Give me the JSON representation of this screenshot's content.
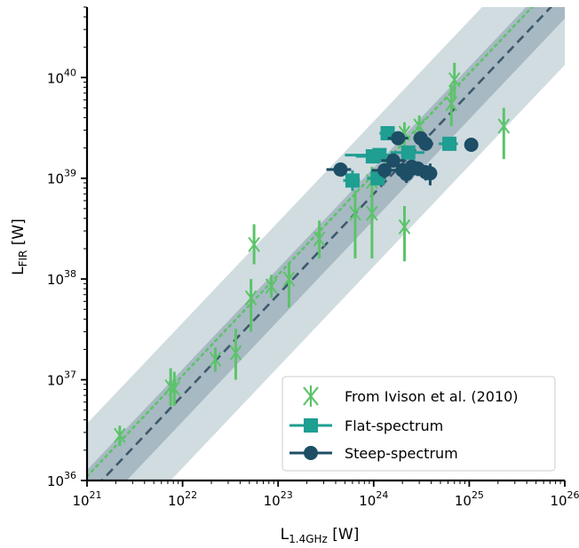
{
  "chart_data": {
    "type": "scatter",
    "x_scale": "log",
    "y_scale": "log",
    "xlim": [
      1e+21,
      1e+26
    ],
    "ylim": [
      1e+36,
      5e+40
    ],
    "x_ticks": [
      {
        "base": "10",
        "exp": "21"
      },
      {
        "base": "10",
        "exp": "22"
      },
      {
        "base": "10",
        "exp": "23"
      },
      {
        "base": "10",
        "exp": "24"
      },
      {
        "base": "10",
        "exp": "25"
      },
      {
        "base": "10",
        "exp": "26"
      }
    ],
    "y_ticks": [
      {
        "base": "10",
        "exp": "36"
      },
      {
        "base": "10",
        "exp": "37"
      },
      {
        "base": "10",
        "exp": "38"
      },
      {
        "base": "10",
        "exp": "39"
      },
      {
        "base": "10",
        "exp": "40"
      }
    ],
    "xlabel": {
      "main": "L",
      "sub": "1.4GHz",
      "unit": " [W]"
    },
    "ylabel": {
      "main": "L",
      "sub": "FIR",
      "unit": " [W]"
    },
    "legend_position": "lower-right",
    "colors": {
      "ivison": "#5cc36a",
      "flat": "#1f9e92",
      "steep": "#1d4e66",
      "band_outer": "#d0dce0",
      "band_inner": "#a7b9c2",
      "fit_line": "#3d5a6c"
    },
    "bands": {
      "inner_dex": 0.26,
      "outer_dex": 0.72
    },
    "lines": {
      "dashed_fit": [
        [
          1e+21,
          7e+35
        ],
        [
          1e+26,
          7e+40
        ]
      ],
      "dotted_fit": [
        [
          1e+21,
          1.1e+36
        ],
        [
          1e+26,
          1.1e+41
        ]
      ]
    },
    "series": [
      {
        "name": "From Ivison et al. (2010)",
        "marker": "x",
        "points": [
          {
            "x": 2.2e+21,
            "y": 2.8e+36,
            "yerr": [
              2.2e+36,
              3.5e+36
            ]
          },
          {
            "x": 7.5e+21,
            "y": 8.5e+36,
            "yerr": [
              5.5e+36,
              1.3e+37
            ]
          },
          {
            "x": 8.2e+21,
            "y": 8.2e+36,
            "yerr": [
              5.5e+36,
              1.2e+37
            ]
          },
          {
            "x": 2.2e+22,
            "y": 1.6e+37,
            "yerr": [
              1.2e+37,
              2.1e+37
            ]
          },
          {
            "x": 3.6e+22,
            "y": 1.85e+37,
            "yerr": [
              1e+37,
              3.2e+37
            ]
          },
          {
            "x": 5.2e+22,
            "y": 6.5e+37,
            "yerr": [
              3e+37,
              1e+38
            ]
          },
          {
            "x": 5.6e+22,
            "y": 2.2e+38,
            "yerr": [
              1.4e+38,
              3.5e+38
            ]
          },
          {
            "x": 8.5e+22,
            "y": 8.5e+37,
            "yerr": [
              6.5e+37,
              1.1e+38
            ]
          },
          {
            "x": 1.3e+23,
            "y": 1e+38,
            "yerr": [
              5.2e+37,
              1.45e+38
            ]
          },
          {
            "x": 2.7e+23,
            "y": 2.5e+38,
            "yerr": [
              1.6e+38,
              3.8e+38
            ]
          },
          {
            "x": 6.4e+23,
            "y": 4.5e+38,
            "yerr": [
              1.6e+38,
              7.5e+38
            ]
          },
          {
            "x": 9.6e+23,
            "y": 4.5e+38,
            "yerr": [
              1.6e+38,
              8e+38
            ]
          },
          {
            "x": 9.6e+23,
            "y": 9.3e+38,
            "yerr": [
              6.5e+38,
              1.3e+39
            ]
          },
          {
            "x": 2.1e+24,
            "y": 3.3e+38,
            "yerr": [
              1.5e+38,
              5.3e+38
            ]
          },
          {
            "x": 2.1e+24,
            "y": 2.8e+39,
            "yerr": [
              1.9e+39,
              3.6e+39
            ]
          },
          {
            "x": 3e+24,
            "y": 3.3e+39,
            "yerr": [
              2.3e+39,
              4.2e+39
            ]
          },
          {
            "x": 6.5e+24,
            "y": 5.5e+39,
            "yerr": [
              3.3e+39,
              8.5e+39
            ]
          },
          {
            "x": 7e+24,
            "y": 9.5e+39,
            "yerr": [
              6e+39,
              1.4e+40
            ]
          },
          {
            "x": 2.3e+25,
            "y": 3.3e+39,
            "yerr": [
              1.55e+39,
              5e+39
            ]
          }
        ]
      },
      {
        "name": "Flat-spectrum",
        "marker": "square",
        "points": [
          {
            "x": 6e+23,
            "y": 9.5e+38,
            "xerr": [
              4.8e+23,
              7.2e+23
            ],
            "yerr": [
              7.5e+38,
              1.2e+39
            ]
          },
          {
            "x": 9.8e+23,
            "y": 1.65e+39,
            "xerr": [
              6.5e+23,
              1.3e+24
            ],
            "yerr": [
              1.4e+39,
              1.9e+39
            ]
          },
          {
            "x": 1.15e+24,
            "y": 1.7e+39,
            "xerr": [
              5e+23,
              1.6e+24
            ],
            "yerr": [
              1.45e+39,
              1.95e+39
            ]
          },
          {
            "x": 1.1e+24,
            "y": 1e+39,
            "xerr": [
              8.5e+23,
              1.35e+24
            ],
            "yerr": [
              8.5e+38,
              1.15e+39
            ]
          },
          {
            "x": 1.4e+24,
            "y": 2.8e+39,
            "xerr": [
              1.15e+24,
              1.7e+24
            ],
            "yerr": [
              2.4e+39,
              3.2e+39
            ]
          },
          {
            "x": 2.3e+24,
            "y": 1.8e+39,
            "xerr": [
              1.5e+24,
              3.4e+24
            ],
            "yerr": [
              1.55e+39,
              2.05e+39
            ]
          },
          {
            "x": 6.2e+24,
            "y": 2.2e+39,
            "xerr": [
              4.8e+24,
              7.6e+24
            ],
            "yerr": [
              1.9e+39,
              2.5e+39
            ]
          }
        ]
      },
      {
        "name": "Steep-spectrum",
        "marker": "circle",
        "points": [
          {
            "x": 4.5e+23,
            "y": 1.22e+39,
            "xerr": [
              3.2e+23,
              5.8e+23
            ],
            "yerr": [
              1.08e+39,
              1.36e+39
            ]
          },
          {
            "x": 1.3e+24,
            "y": 1.2e+39,
            "xerr": [
              9.5e+23,
              1.7e+24
            ],
            "yerr": [
              1e+39,
              1.4e+39
            ]
          },
          {
            "x": 1.6e+24,
            "y": 1.5e+39,
            "xerr": [
              1.2e+24,
              2.1e+24
            ],
            "yerr": [
              1.3e+39,
              1.7e+39
            ]
          },
          {
            "x": 1.8e+24,
            "y": 2.5e+39,
            "xerr": [
              1.4e+24,
              2.3e+24
            ],
            "yerr": [
              2.2e+39,
              2.8e+39
            ]
          },
          {
            "x": 2e+24,
            "y": 1.2e+39,
            "xerr": [
              1.6e+24,
              2.5e+24
            ],
            "yerr": [
              1e+39,
              1.4e+39
            ]
          },
          {
            "x": 2.2e+24,
            "y": 1.1e+39,
            "xerr": [
              1.8e+24,
              2.7e+24
            ],
            "yerr": [
              9e+38,
              1.3e+39
            ]
          },
          {
            "x": 2.5e+24,
            "y": 1.3e+39,
            "xerr": [
              2e+24,
              3e+24
            ],
            "yerr": [
              1.1e+39,
              1.5e+39
            ]
          },
          {
            "x": 2.9e+24,
            "y": 1.25e+39,
            "xerr": [
              2.3e+24,
              3.6e+24
            ],
            "yerr": [
              1.05e+39,
              1.45e+39
            ]
          },
          {
            "x": 3.1e+24,
            "y": 2.5e+39,
            "xerr": [
              2.6e+24,
              3.6e+24
            ],
            "yerr": [
              2.2e+39,
              2.8e+39
            ]
          },
          {
            "x": 3.5e+24,
            "y": 2.2e+39,
            "xerr": [
              2.9e+24,
              4.2e+24
            ],
            "yerr": [
              1.9e+39,
              2.5e+39
            ]
          },
          {
            "x": 3.5e+24,
            "y": 1.15e+39,
            "xerr": [
              2.9e+24,
              4.2e+24
            ],
            "yerr": [
              9.5e+38,
              1.35e+39
            ]
          },
          {
            "x": 3.9e+24,
            "y": 1.12e+39,
            "xerr": [
              3.2e+24,
              4.6e+24
            ],
            "yerr": [
              8.5e+38,
              1.4e+39
            ]
          },
          {
            "x": 1.05e+25,
            "y": 2.15e+39,
            "xerr": [
              9e+24,
              1.2e+25
            ],
            "yerr": [
              2e+39,
              2.3e+39
            ]
          }
        ]
      }
    ]
  }
}
